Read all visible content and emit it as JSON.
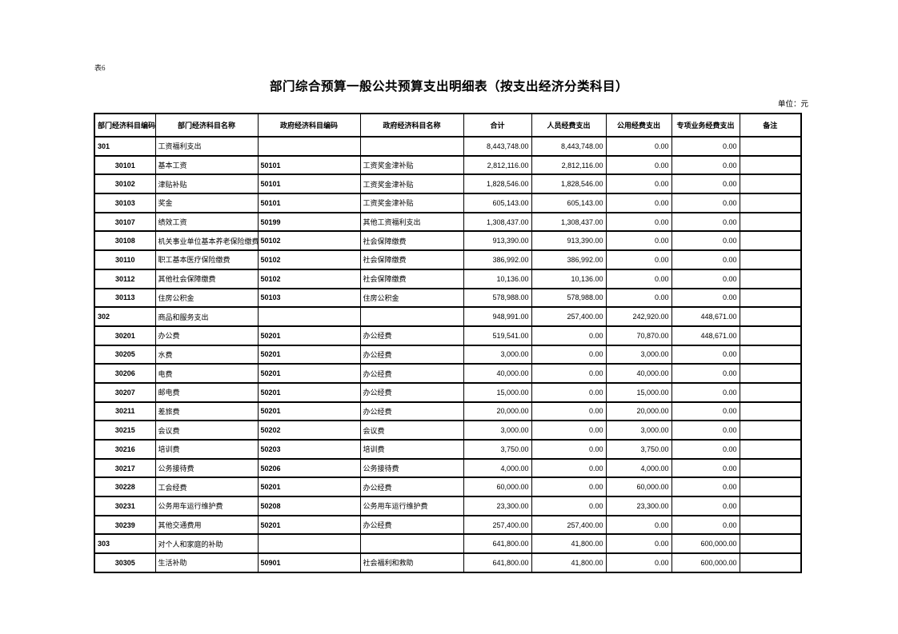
{
  "page": {
    "sheet_label": "表6",
    "title": "部门综合预算一般公共预算支出明细表（按支出经济分类科目）",
    "unit_label": "单位：元",
    "text_color": "#000000",
    "background_color": "#ffffff"
  },
  "table": {
    "columns": [
      "部门经济科目编码",
      "部门经济科目名称",
      "政府经济科目编码",
      "政府经济科目名称",
      "合计",
      "人员经费支出",
      "公用经费支出",
      "专项业务经费支出",
      "备注"
    ],
    "rows": [
      {
        "level": "section",
        "dept_code": "301",
        "dept_name": "工资福利支出",
        "gov_code": "",
        "gov_name": "",
        "total": "8,443,748.00",
        "personnel": "8,443,748.00",
        "public_funds": "0.00",
        "project": "0.00",
        "remark": ""
      },
      {
        "level": "detail",
        "dept_code": "30101",
        "dept_name": "基本工资",
        "gov_code": "50101",
        "gov_name": "工资奖金津补贴",
        "total": "2,812,116.00",
        "personnel": "2,812,116.00",
        "public_funds": "0.00",
        "project": "0.00",
        "remark": ""
      },
      {
        "level": "detail",
        "dept_code": "30102",
        "dept_name": "津贴补贴",
        "gov_code": "50101",
        "gov_name": "工资奖金津补贴",
        "total": "1,828,546.00",
        "personnel": "1,828,546.00",
        "public_funds": "0.00",
        "project": "0.00",
        "remark": ""
      },
      {
        "level": "detail",
        "dept_code": "30103",
        "dept_name": "奖金",
        "gov_code": "50101",
        "gov_name": "工资奖金津补贴",
        "total": "605,143.00",
        "personnel": "605,143.00",
        "public_funds": "0.00",
        "project": "0.00",
        "remark": ""
      },
      {
        "level": "detail",
        "dept_code": "30107",
        "dept_name": "绩效工资",
        "gov_code": "50199",
        "gov_name": "其他工资福利支出",
        "total": "1,308,437.00",
        "personnel": "1,308,437.00",
        "public_funds": "0.00",
        "project": "0.00",
        "remark": ""
      },
      {
        "level": "detail",
        "dept_code": "30108",
        "dept_name": "机关事业单位基本养老保险缴费",
        "gov_code": "50102",
        "gov_name": "社会保障缴费",
        "total": "913,390.00",
        "personnel": "913,390.00",
        "public_funds": "0.00",
        "project": "0.00",
        "remark": ""
      },
      {
        "level": "detail",
        "dept_code": "30110",
        "dept_name": "职工基本医疗保险缴费",
        "gov_code": "50102",
        "gov_name": "社会保障缴费",
        "total": "386,992.00",
        "personnel": "386,992.00",
        "public_funds": "0.00",
        "project": "0.00",
        "remark": ""
      },
      {
        "level": "detail",
        "dept_code": "30112",
        "dept_name": "其他社会保障缴费",
        "gov_code": "50102",
        "gov_name": "社会保障缴费",
        "total": "10,136.00",
        "personnel": "10,136.00",
        "public_funds": "0.00",
        "project": "0.00",
        "remark": ""
      },
      {
        "level": "detail",
        "dept_code": "30113",
        "dept_name": "住房公积金",
        "gov_code": "50103",
        "gov_name": "住房公积金",
        "total": "578,988.00",
        "personnel": "578,988.00",
        "public_funds": "0.00",
        "project": "0.00",
        "remark": ""
      },
      {
        "level": "section",
        "dept_code": "302",
        "dept_name": "商品和服务支出",
        "gov_code": "",
        "gov_name": "",
        "total": "948,991.00",
        "personnel": "257,400.00",
        "public_funds": "242,920.00",
        "project": "448,671.00",
        "remark": ""
      },
      {
        "level": "detail",
        "dept_code": "30201",
        "dept_name": "办公费",
        "gov_code": "50201",
        "gov_name": "办公经费",
        "total": "519,541.00",
        "personnel": "0.00",
        "public_funds": "70,870.00",
        "project": "448,671.00",
        "remark": ""
      },
      {
        "level": "detail",
        "dept_code": "30205",
        "dept_name": "水费",
        "gov_code": "50201",
        "gov_name": "办公经费",
        "total": "3,000.00",
        "personnel": "0.00",
        "public_funds": "3,000.00",
        "project": "0.00",
        "remark": ""
      },
      {
        "level": "detail",
        "dept_code": "30206",
        "dept_name": "电费",
        "gov_code": "50201",
        "gov_name": "办公经费",
        "total": "40,000.00",
        "personnel": "0.00",
        "public_funds": "40,000.00",
        "project": "0.00",
        "remark": ""
      },
      {
        "level": "detail",
        "dept_code": "30207",
        "dept_name": "邮电费",
        "gov_code": "50201",
        "gov_name": "办公经费",
        "total": "15,000.00",
        "personnel": "0.00",
        "public_funds": "15,000.00",
        "project": "0.00",
        "remark": ""
      },
      {
        "level": "detail",
        "dept_code": "30211",
        "dept_name": "差旅费",
        "gov_code": "50201",
        "gov_name": "办公经费",
        "total": "20,000.00",
        "personnel": "0.00",
        "public_funds": "20,000.00",
        "project": "0.00",
        "remark": ""
      },
      {
        "level": "detail",
        "dept_code": "30215",
        "dept_name": "会议费",
        "gov_code": "50202",
        "gov_name": "会议费",
        "total": "3,000.00",
        "personnel": "0.00",
        "public_funds": "3,000.00",
        "project": "0.00",
        "remark": ""
      },
      {
        "level": "detail",
        "dept_code": "30216",
        "dept_name": "培训费",
        "gov_code": "50203",
        "gov_name": "培训费",
        "total": "3,750.00",
        "personnel": "0.00",
        "public_funds": "3,750.00",
        "project": "0.00",
        "remark": ""
      },
      {
        "level": "detail",
        "dept_code": "30217",
        "dept_name": "公务接待费",
        "gov_code": "50206",
        "gov_name": "公务接待费",
        "total": "4,000.00",
        "personnel": "0.00",
        "public_funds": "4,000.00",
        "project": "0.00",
        "remark": ""
      },
      {
        "level": "detail",
        "dept_code": "30228",
        "dept_name": "工会经费",
        "gov_code": "50201",
        "gov_name": "办公经费",
        "total": "60,000.00",
        "personnel": "0.00",
        "public_funds": "60,000.00",
        "project": "0.00",
        "remark": ""
      },
      {
        "level": "detail",
        "dept_code": "30231",
        "dept_name": "公务用车运行维护费",
        "gov_code": "50208",
        "gov_name": "公务用车运行维护费",
        "total": "23,300.00",
        "personnel": "0.00",
        "public_funds": "23,300.00",
        "project": "0.00",
        "remark": ""
      },
      {
        "level": "detail",
        "dept_code": "30239",
        "dept_name": "其他交通费用",
        "gov_code": "50201",
        "gov_name": "办公经费",
        "total": "257,400.00",
        "personnel": "257,400.00",
        "public_funds": "0.00",
        "project": "0.00",
        "remark": ""
      },
      {
        "level": "section",
        "dept_code": "303",
        "dept_name": "对个人和家庭的补助",
        "gov_code": "",
        "gov_name": "",
        "total": "641,800.00",
        "personnel": "41,800.00",
        "public_funds": "0.00",
        "project": "600,000.00",
        "remark": ""
      },
      {
        "level": "detail",
        "dept_code": "30305",
        "dept_name": "生活补助",
        "gov_code": "50901",
        "gov_name": "社会福利和救助",
        "total": "641,800.00",
        "personnel": "41,800.00",
        "public_funds": "0.00",
        "project": "600,000.00",
        "remark": ""
      }
    ]
  }
}
